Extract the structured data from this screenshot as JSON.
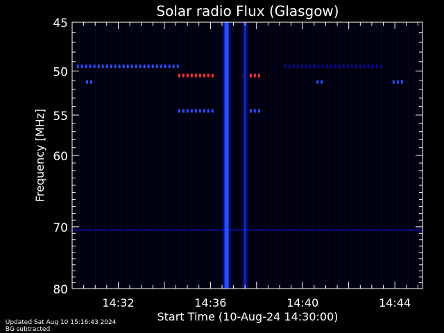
{
  "footer": {
    "updated": "Updated Sat Aug 10 15:16:43 2024",
    "note": "BG subtracted"
  },
  "chart_data": {
    "type": "heatmap",
    "title": "Solar radio Flux (Glasgow)",
    "xlabel": "Start Time (10-Aug-24 14:30:00)",
    "ylabel": "Frequency [MHz]",
    "x_unit": "minutes after 14:30",
    "xlim": [
      0,
      15.2
    ],
    "ylim": [
      45,
      80
    ],
    "y_scale": "log",
    "y_ticks": [
      45,
      50,
      55,
      60,
      70,
      80
    ],
    "x_ticks": [
      {
        "label": "14:32",
        "minute": 2
      },
      {
        "label": "14:36",
        "minute": 6
      },
      {
        "label": "14:40",
        "minute": 10
      },
      {
        "label": "14:44",
        "minute": 14
      }
    ],
    "colors": {
      "background": "#000010",
      "low": "#0a0a90",
      "mid": "#2a4dff",
      "high": "#ff3030"
    },
    "bursts": [
      {
        "minute": 6.7,
        "f_start": 45,
        "f_end": 80,
        "intensity": "high",
        "kind": "broadband"
      },
      {
        "minute": 7.5,
        "f_start": 45,
        "f_end": 80,
        "intensity": "medium",
        "kind": "broadband"
      }
    ],
    "interference_lines": [
      {
        "freq": 49.5,
        "start": 0.2,
        "end": 4.7,
        "intensity": "medium"
      },
      {
        "freq": 50.5,
        "start": 4.6,
        "end": 6.2,
        "intensity": "high"
      },
      {
        "freq": 50.5,
        "start": 7.7,
        "end": 8.1,
        "intensity": "high"
      },
      {
        "freq": 51.2,
        "start": 0.6,
        "end": 0.8,
        "intensity": "medium"
      },
      {
        "freq": 54.5,
        "start": 4.6,
        "end": 6.1,
        "intensity": "medium"
      },
      {
        "freq": 54.5,
        "start": 7.7,
        "end": 8.2,
        "intensity": "medium"
      },
      {
        "freq": 49.5,
        "start": 9.2,
        "end": 13.5,
        "intensity": "low"
      },
      {
        "freq": 51.2,
        "start": 10.6,
        "end": 10.8,
        "intensity": "medium"
      },
      {
        "freq": 51.2,
        "start": 13.9,
        "end": 14.3,
        "intensity": "medium"
      },
      {
        "freq": 70.5,
        "start": 0,
        "end": 15.2,
        "intensity": "low"
      }
    ]
  }
}
